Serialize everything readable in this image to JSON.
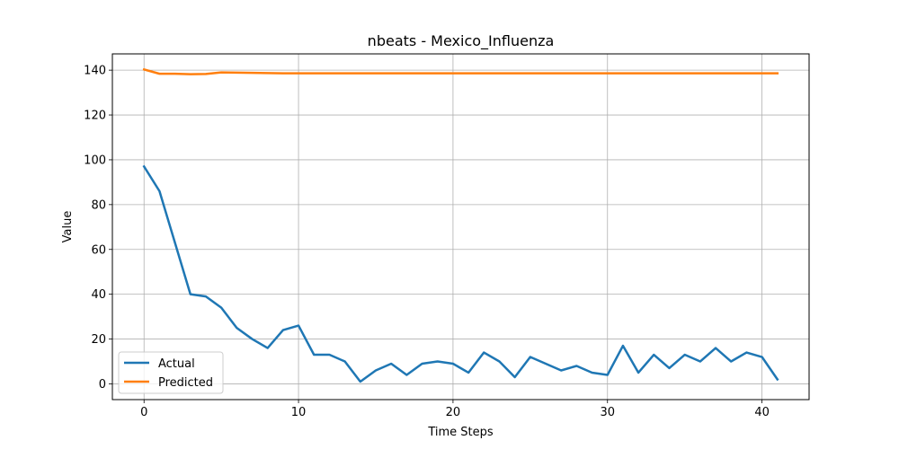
{
  "chart_data": {
    "type": "line",
    "title": "nbeats - Mexico_Influenza",
    "xlabel": "Time Steps",
    "ylabel": "Value",
    "xlim": [
      -2.05,
      43.05
    ],
    "ylim": [
      -7.03,
      147.27
    ],
    "xticks": [
      0,
      10,
      20,
      30,
      40
    ],
    "yticks": [
      0,
      20,
      40,
      60,
      80,
      100,
      120,
      140
    ],
    "grid": true,
    "legend": {
      "position": "lower-left"
    },
    "series": [
      {
        "name": "Actual",
        "color": "#1f77b4",
        "x": [
          0,
          1,
          2,
          3,
          4,
          5,
          6,
          7,
          8,
          9,
          10,
          11,
          12,
          13,
          14,
          15,
          16,
          17,
          18,
          19,
          20,
          21,
          22,
          23,
          24,
          25,
          26,
          27,
          28,
          29,
          30,
          31,
          32,
          33,
          34,
          35,
          36,
          37,
          38,
          39,
          40,
          41
        ],
        "values": [
          97,
          86,
          63,
          40,
          39,
          34,
          25,
          20,
          16,
          24,
          26,
          13,
          13,
          10,
          1,
          6,
          9,
          4,
          9,
          10,
          9,
          5,
          14,
          10,
          3,
          12,
          9,
          6,
          8,
          5,
          4,
          17,
          5,
          13,
          7,
          13,
          10,
          16,
          10,
          14,
          12,
          2
        ]
      },
      {
        "name": "Predicted",
        "color": "#ff7f0e",
        "x": [
          0,
          1,
          2,
          3,
          4,
          5,
          6,
          7,
          8,
          9,
          10,
          11,
          12,
          13,
          14,
          15,
          16,
          17,
          18,
          19,
          20,
          21,
          22,
          23,
          24,
          25,
          26,
          27,
          28,
          29,
          30,
          31,
          32,
          33,
          34,
          35,
          36,
          37,
          38,
          39,
          40,
          41
        ],
        "values": [
          140.3,
          138.4,
          138.4,
          138.2,
          138.3,
          139.0,
          138.9,
          138.8,
          138.7,
          138.6,
          138.6,
          138.6,
          138.6,
          138.6,
          138.6,
          138.6,
          138.6,
          138.6,
          138.6,
          138.6,
          138.6,
          138.6,
          138.6,
          138.6,
          138.6,
          138.6,
          138.6,
          138.6,
          138.6,
          138.6,
          138.6,
          138.6,
          138.6,
          138.6,
          138.6,
          138.6,
          138.6,
          138.6,
          138.6,
          138.6,
          138.6,
          138.6
        ]
      }
    ]
  }
}
